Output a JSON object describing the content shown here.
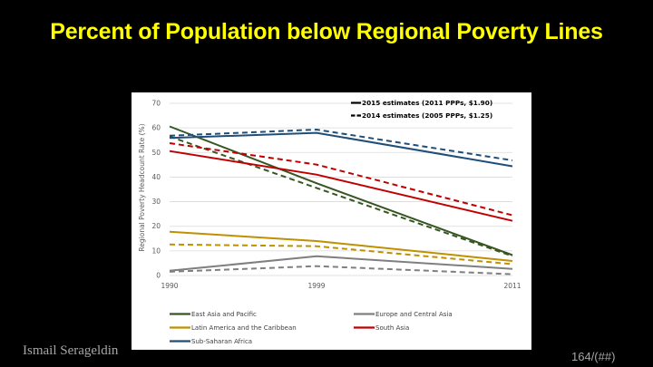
{
  "slide": {
    "title": "Percent of Population below Regional Poverty Lines",
    "author": "Ismail Serageldin",
    "page_number": "164/(##)"
  },
  "chart_data": {
    "type": "line",
    "title": "",
    "xlabel": "",
    "ylabel": "Regional Poverty Headcount Rate (%)",
    "x": [
      "1990",
      "1999",
      "2011"
    ],
    "ylim": [
      0,
      70
    ],
    "yticks": [
      "0",
      "10",
      "20",
      "30",
      "40",
      "50",
      "60",
      "70"
    ],
    "grid": true,
    "estimate_legend": [
      {
        "style": "solid",
        "label": "2015 estimates (2011 PPPs, $1.90)"
      },
      {
        "style": "dashed",
        "label": "2014 estimates (2005 PPPs, $1.25)"
      }
    ],
    "legend_position": "bottom",
    "regions": [
      {
        "name": "East Asia and Pacific",
        "color": "#375623"
      },
      {
        "name": "Europe and Central Asia",
        "color": "#7f7f7f"
      },
      {
        "name": "Latin America and the Caribbean",
        "color": "#bf9000"
      },
      {
        "name": "South Asia",
        "color": "#c00000"
      },
      {
        "name": "Sub-Saharan Africa",
        "color": "#1f4e79"
      }
    ],
    "series": [
      {
        "name": "East Asia and Pacific",
        "estimate": "2015",
        "style": "solid",
        "color": "#375623",
        "values": [
          60.6,
          37.5,
          8.3
        ]
      },
      {
        "name": "East Asia and Pacific",
        "estimate": "2014",
        "style": "dashed",
        "color": "#375623",
        "values": [
          56.5,
          35.6,
          7.9
        ]
      },
      {
        "name": "Europe and Central Asia",
        "estimate": "2015",
        "style": "solid",
        "color": "#7f7f7f",
        "values": [
          1.9,
          7.8,
          2.7
        ]
      },
      {
        "name": "Europe and Central Asia",
        "estimate": "2014",
        "style": "dashed",
        "color": "#7f7f7f",
        "values": [
          1.5,
          3.8,
          0.5
        ]
      },
      {
        "name": "Latin America and the Caribbean",
        "estimate": "2015",
        "style": "solid",
        "color": "#bf9000",
        "values": [
          17.8,
          14.0,
          5.9
        ]
      },
      {
        "name": "Latin America and the Caribbean",
        "estimate": "2014",
        "style": "dashed",
        "color": "#bf9000",
        "values": [
          12.6,
          11.9,
          4.6
        ]
      },
      {
        "name": "South Asia",
        "estimate": "2015",
        "style": "solid",
        "color": "#c00000",
        "values": [
          50.6,
          41.0,
          22.2
        ]
      },
      {
        "name": "South Asia",
        "estimate": "2014",
        "style": "dashed",
        "color": "#c00000",
        "values": [
          53.8,
          45.1,
          24.5
        ]
      },
      {
        "name": "Sub-Saharan Africa",
        "estimate": "2015",
        "style": "solid",
        "color": "#1f4e79",
        "values": [
          55.9,
          58.0,
          44.4
        ]
      },
      {
        "name": "Sub-Saharan Africa",
        "estimate": "2014",
        "style": "dashed",
        "color": "#1f4e79",
        "values": [
          56.8,
          59.3,
          46.8
        ]
      }
    ]
  }
}
